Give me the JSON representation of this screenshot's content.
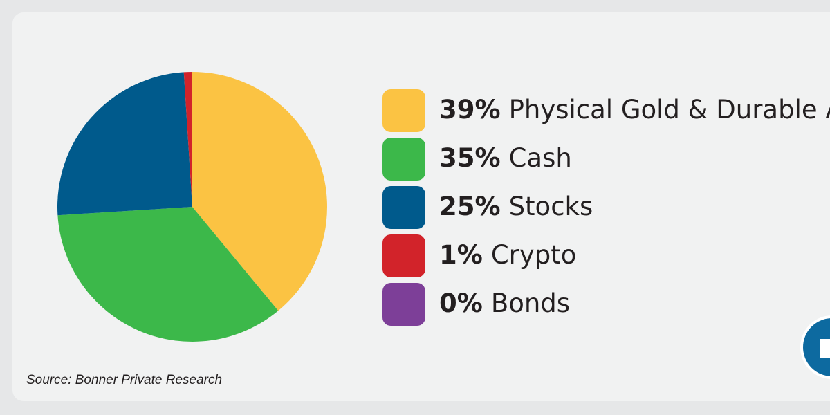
{
  "chart_data": {
    "type": "pie",
    "categories": [
      "Physical Gold & Durable Assets",
      "Cash",
      "Stocks",
      "Crypto",
      "Bonds"
    ],
    "values": [
      39,
      35,
      25,
      1,
      0
    ],
    "value_labels": [
      "39%",
      "35%",
      "25%",
      "1%",
      "0%"
    ],
    "colors": [
      "#fbc343",
      "#3cb84a",
      "#005a8c",
      "#d2232a",
      "#7d3f98"
    ],
    "source": "Source: Bonner Private Research"
  }
}
